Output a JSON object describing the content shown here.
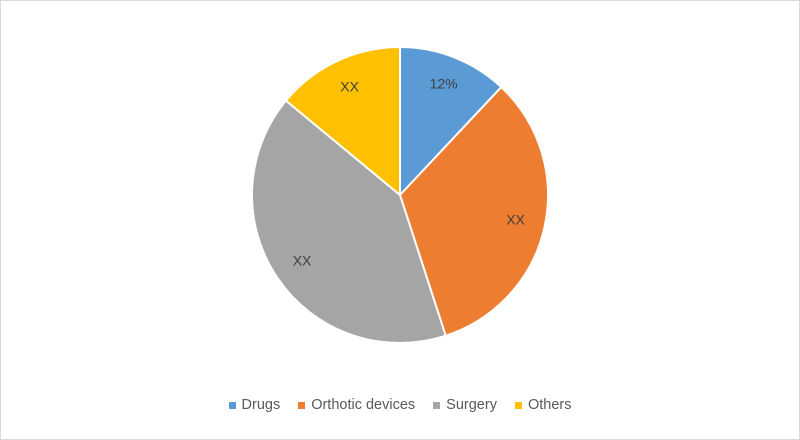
{
  "chart_data": {
    "type": "pie",
    "title": "",
    "legend_position": "bottom",
    "slices": [
      {
        "name": "Drugs",
        "value": 12,
        "label": "12%",
        "color": "#5b9bd5"
      },
      {
        "name": "Orthotic devices",
        "value": 33,
        "label": "XX",
        "color": "#ed7d31"
      },
      {
        "name": "Surgery",
        "value": 41,
        "label": "XX",
        "color": "#a5a5a5"
      },
      {
        "name": "Others",
        "value": 14,
        "label": "XX",
        "color": "#ffc000"
      }
    ]
  }
}
